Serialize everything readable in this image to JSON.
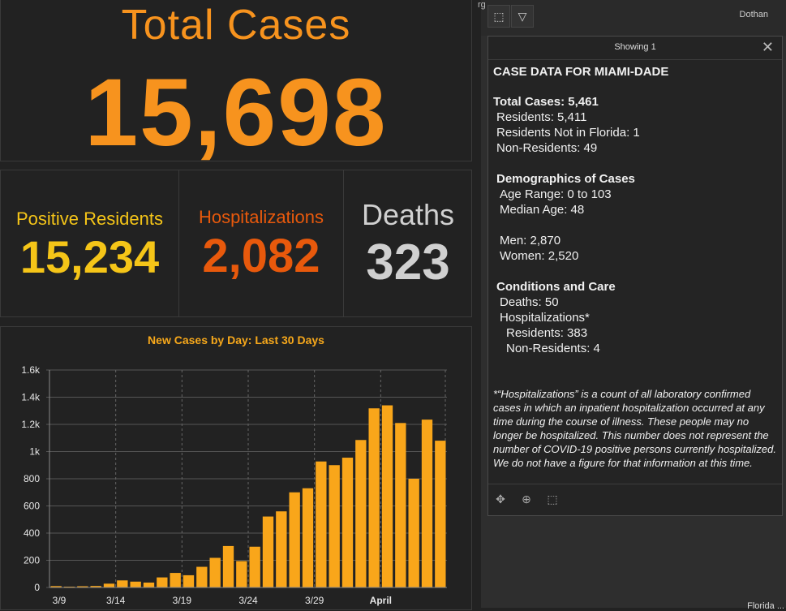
{
  "total": {
    "title": "Total Cases",
    "value": "15,698",
    "color": "#f7931e"
  },
  "stats": [
    {
      "label": "Positive Residents",
      "value": "15,234",
      "label_color": "#f5c518",
      "value_color": "#f5c518"
    },
    {
      "label": "Hospitalizations",
      "value": "2,082",
      "label_color": "#e8590c",
      "value_color": "#e8590c"
    },
    {
      "label": "Deaths",
      "value": "323",
      "label_color": "#d0d0d0",
      "value_color": "#d0d0d0"
    }
  ],
  "chart_data": {
    "type": "bar",
    "title": "New Cases by Day: Last 30 Days",
    "xlabel": "",
    "ylabel": "",
    "ylim": [
      0,
      1600
    ],
    "yticks": [
      "0",
      "200",
      "400",
      "600",
      "800",
      "1k",
      "1.2k",
      "1.4k",
      "1.6k"
    ],
    "xticks": [
      "3/9",
      "3/14",
      "3/19",
      "3/24",
      "3/29",
      "April"
    ],
    "bar_color": "#f9a61a",
    "values": [
      10,
      6,
      9,
      11,
      28,
      52,
      43,
      36,
      74,
      107,
      90,
      152,
      218,
      305,
      194,
      300,
      522,
      560,
      700,
      730,
      927,
      900,
      955,
      1085,
      1318,
      1340,
      1210,
      800,
      1235,
      1080
    ]
  },
  "map": {
    "partial_label": "rg",
    "city_label": "Dothan",
    "bottom_label": "Florida ...",
    "select_icon": "select-icon",
    "dropdown_icon": "chevron-down-icon"
  },
  "popup": {
    "header": "Showing 1",
    "close_icon": "close-icon",
    "title": "CASE DATA FOR MIAMI-DADE",
    "total_cases": "Total Cases: 5,461",
    "residents": "Residents: 5,411",
    "residents_not_fl": "Residents Not in Florida: 1",
    "non_residents": "Non-Residents: 49",
    "demographics_title": "Demographics of Cases",
    "age_range": "Age Range: 0 to 103",
    "median_age": "Median Age: 48",
    "men": "Men: 2,870",
    "women": "Women: 2,520",
    "conditions_title": "Conditions and Care",
    "deaths": "Deaths: 50",
    "hospitalizations": "Hospitalizations*",
    "hosp_residents": "Residents: 383",
    "hosp_non_residents": "Non-Residents: 4",
    "note": "*“Hospitalizations” is a count of all laboratory confirmed cases in which an inpatient hospitalization occurred at any time during the course of illness. These people may no longer be hospitalized. This number does not represent the number of COVID-19 positive persons currently hospitalized. We do not have a figure for that information at this time.",
    "footer_icons": [
      "pan-icon",
      "zoom-to-icon",
      "select-icon"
    ]
  }
}
